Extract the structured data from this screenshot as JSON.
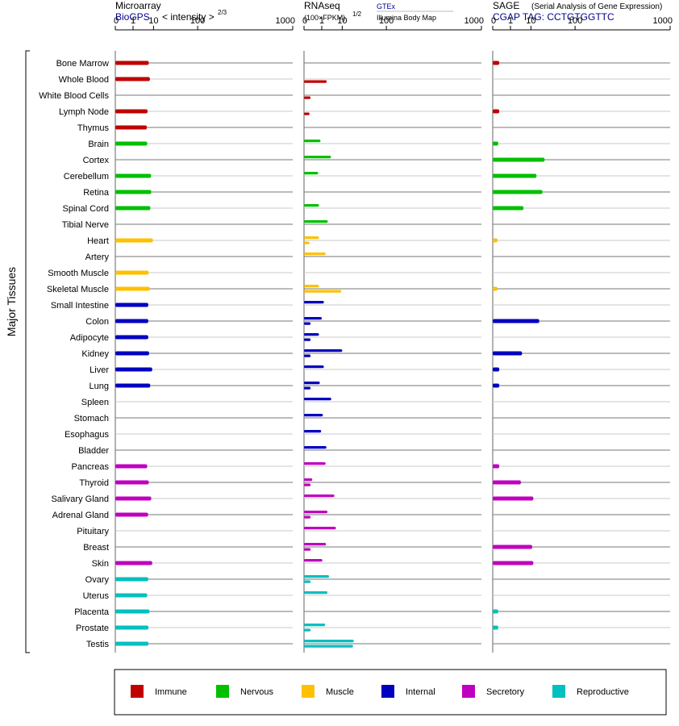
{
  "panels": {
    "microarray": {
      "title": "Microarray",
      "subtitle": "BioGPS",
      "scale_label": "< intensity >",
      "scale_exponent": "2/3"
    },
    "rnaseq": {
      "title": "RNAseq",
      "scale_label": "(100×FPKM)",
      "scale_exponent": "1/2",
      "source_1": "GTEx",
      "source_2": "Illumina Body Map"
    },
    "sage": {
      "title": "SAGE",
      "title_note": "(Serial Analysis of Gene Expression)",
      "subtitle": "CGAP TAG: CCTGTGGTTC"
    }
  },
  "y_group_label": "Major Tissues",
  "legend": [
    {
      "name": "Immune",
      "color": "#c00000"
    },
    {
      "name": "Nervous",
      "color": "#00c000"
    },
    {
      "name": "Muscle",
      "color": "#ffc000"
    },
    {
      "name": "Internal",
      "color": "#0000c0"
    },
    {
      "name": "Secretory",
      "color": "#c000c0"
    },
    {
      "name": "Reproductive",
      "color": "#00c0c0"
    }
  ],
  "chart_data": {
    "type": "bar",
    "orientation": "horizontal",
    "x_scale": "power (nonlinear)",
    "x_ticks": [
      0,
      1,
      10,
      100,
      1000
    ],
    "x_tick_labels": [
      "0",
      "1",
      "10",
      "100",
      "1000"
    ],
    "xlim": [
      0,
      1000
    ],
    "categories": [
      "Bone Marrow",
      "Whole Blood",
      "White Blood Cells",
      "Lymph Node",
      "Thymus",
      "Brain",
      "Cortex",
      "Cerebellum",
      "Retina",
      "Spinal Cord",
      "Tibial Nerve",
      "Heart",
      "Artery",
      "Smooth Muscle",
      "Skeletal Muscle",
      "Small Intestine",
      "Colon",
      "Adipocyte",
      "Kidney",
      "Liver",
      "Lung",
      "Spleen",
      "Stomach",
      "Esophagus",
      "Bladder",
      "Pancreas",
      "Thyroid",
      "Salivary Gland",
      "Adrenal Gland",
      "Pituitary",
      "Breast",
      "Skin",
      "Ovary",
      "Uterus",
      "Placenta",
      "Prostate",
      "Testis"
    ],
    "groups": [
      "Immune",
      "Immune",
      "Immune",
      "Immune",
      "Immune",
      "Nervous",
      "Nervous",
      "Nervous",
      "Nervous",
      "Nervous",
      "Nervous",
      "Muscle",
      "Muscle",
      "Muscle",
      "Muscle",
      "Internal",
      "Internal",
      "Internal",
      "Internal",
      "Internal",
      "Internal",
      "Internal",
      "Internal",
      "Internal",
      "Internal",
      "Secretory",
      "Secretory",
      "Secretory",
      "Secretory",
      "Secretory",
      "Secretory",
      "Secretory",
      "Reproductive",
      "Reproductive",
      "Reproductive",
      "Reproductive",
      "Reproductive"
    ],
    "microarray": [
      6.7,
      7.4,
      null,
      6.0,
      5.6,
      5.8,
      null,
      8.2,
      8.3,
      7.7,
      null,
      9.5,
      null,
      6.6,
      7.4,
      6.4,
      6.4,
      6.4,
      6.9,
      9.0,
      7.6,
      null,
      null,
      null,
      null,
      5.8,
      6.7,
      8.3,
      6.3,
      null,
      null,
      9.0,
      6.4,
      5.8,
      7.1,
      6.5,
      6.5
    ],
    "rnaseq": {
      "series": [
        {
          "name": "GTEx",
          "values": [
            null,
            null,
            null,
            null,
            null,
            0.8,
            3.5,
            0.5,
            null,
            0.6,
            2.4,
            0.6,
            1.8,
            null,
            0.6,
            1.4,
            1.0,
            0.6,
            10,
            1.4,
            0.7,
            3.6,
            1.2,
            0.9,
            2.0,
            1.8,
            0.1,
            5.0,
            2.3,
            5.8,
            1.9,
            1.1,
            2.8,
            2.3,
            null,
            1.7,
            22
          ]
        },
        {
          "name": "Illumina Body Map",
          "values": [
            null,
            2.1,
            0.05,
            0.03,
            null,
            null,
            null,
            null,
            null,
            null,
            null,
            0.03,
            null,
            null,
            9.2,
            null,
            0.05,
            0.05,
            0.05,
            null,
            0.05,
            null,
            null,
            null,
            null,
            null,
            0.05,
            null,
            0.05,
            null,
            0.05,
            null,
            0.05,
            null,
            null,
            0.05,
            21
          ]
        }
      ]
    },
    "sage": [
      0.05,
      null,
      null,
      0.05,
      null,
      0.03,
      25,
      15,
      22,
      5.2,
      null,
      0.02,
      null,
      null,
      0.02,
      null,
      18,
      null,
      4.5,
      0.05,
      0.05,
      null,
      null,
      null,
      null,
      0.05,
      4,
      12,
      null,
      null,
      11,
      12,
      null,
      null,
      0.03,
      0.03,
      null
    ]
  }
}
